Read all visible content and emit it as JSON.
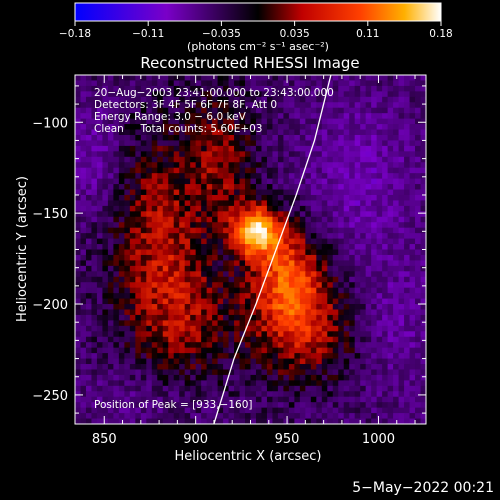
{
  "chart_data": {
    "type": "heatmap",
    "title": "Reconstructed RHESSI Image",
    "xlabel": "Heliocentric X (arcsec)",
    "ylabel": "Heliocentric Y (arcsec)",
    "xlim": [
      834,
      1026
    ],
    "ylim": [
      -266,
      -74
    ],
    "xticks": [
      850,
      900,
      950,
      1000
    ],
    "yticks": [
      -100,
      -150,
      -200,
      -250
    ],
    "colorbar": {
      "min": -0.18,
      "max": 0.18,
      "ticks": [
        "−0.18",
        "−0.11",
        "−0.035",
        "0.035",
        "0.11",
        "0.18"
      ],
      "unit_label": "(photons cm⁻² s⁻¹ asec⁻²)"
    },
    "annotations": [
      "20−Aug−2003 23:41:00.000 to 23:43:00.000",
      "Detectors: 3F 4F 5F 6F 7F 8F, Att 0",
      "Energy Range: 3.0 − 6.0 keV",
      "Clean     Total counts: 5.60E+03"
    ],
    "peak_label": "Position of Peak = [933,−160]",
    "peak": [
      933,
      -160
    ],
    "limb_line": [
      [
        910,
        -266
      ],
      [
        921,
        -230
      ],
      [
        933,
        -200
      ],
      [
        944,
        -170
      ],
      [
        955,
        -140
      ],
      [
        965,
        -110
      ],
      [
        974,
        -74
      ]
    ],
    "features": [
      {
        "x": 933,
        "y": -160,
        "peak": 0.18,
        "sx": 9,
        "sy": 9
      },
      {
        "x": 950,
        "y": -185,
        "peak": 0.11,
        "sx": 14,
        "sy": 20
      },
      {
        "x": 880,
        "y": -160,
        "peak": 0.07,
        "sx": 18,
        "sy": 40
      },
      {
        "x": 915,
        "y": -120,
        "peak": 0.06,
        "sx": 12,
        "sy": 25
      },
      {
        "x": 960,
        "y": -215,
        "peak": 0.07,
        "sx": 20,
        "sy": 20
      },
      {
        "x": 895,
        "y": -210,
        "peak": 0.05,
        "sx": 20,
        "sy": 25
      },
      {
        "x": 990,
        "y": -130,
        "peak": -0.04,
        "sx": 20,
        "sy": 30
      },
      {
        "x": 845,
        "y": -120,
        "peak": -0.04,
        "sx": 10,
        "sy": 20
      },
      {
        "x": 1010,
        "y": -210,
        "peak": -0.03,
        "sx": 15,
        "sy": 30
      },
      {
        "x": 870,
        "y": -250,
        "peak": -0.02,
        "sx": 25,
        "sy": 12
      }
    ]
  },
  "footer": {
    "date": "5−May−2022 00:21"
  }
}
